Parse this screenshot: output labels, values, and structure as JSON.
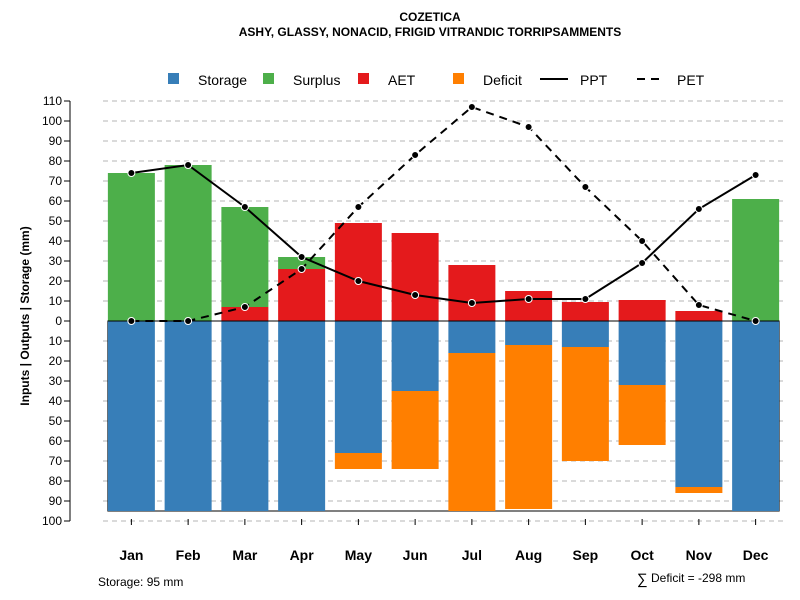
{
  "chart_data": {
    "type": "bar",
    "title": "COZETICA",
    "subtitle": "ASHY, GLASSY, NONACID, FRIGID VITRANDIC TORRIPSAMMENTS",
    "ylabel": "Inputs | Outputs | Storage    (mm)",
    "ylim": [
      -100,
      110
    ],
    "yticks": [
      110,
      100,
      90,
      80,
      70,
      60,
      50,
      40,
      30,
      20,
      10,
      0,
      -10,
      -20,
      -30,
      -40,
      -50,
      -60,
      -70,
      -80,
      -90,
      -100
    ],
    "ytick_labels": [
      "110",
      "100",
      "90",
      "80",
      "70",
      "60",
      "50",
      "40",
      "30",
      "20",
      "10",
      "0",
      "10",
      "20",
      "30",
      "40",
      "50",
      "60",
      "70",
      "80",
      "90",
      "100"
    ],
    "grid": true,
    "legend_position": "top",
    "categories": [
      "Jan",
      "Feb",
      "Mar",
      "Apr",
      "May",
      "Jun",
      "Jul",
      "Aug",
      "Sep",
      "Oct",
      "Nov",
      "Dec"
    ],
    "series": [
      {
        "name": "Storage",
        "kind": "bar-below",
        "color": "#377EB8",
        "values": [
          95,
          95,
          95,
          95,
          66,
          35,
          16,
          12,
          13,
          32,
          83,
          95
        ]
      },
      {
        "name": "Surplus",
        "kind": "bar-above",
        "color": "#4DAF4A",
        "values": [
          74,
          78,
          50,
          6,
          0,
          0,
          0,
          0,
          0,
          0,
          0,
          61
        ]
      },
      {
        "name": "AET",
        "kind": "bar-above",
        "color": "#E41A1C",
        "values": [
          0,
          0,
          7,
          26,
          49,
          44,
          28,
          15,
          9.5,
          10.5,
          5,
          0
        ]
      },
      {
        "name": "Deficit",
        "kind": "bar-below-stacked",
        "color": "#FF7F00",
        "values": [
          0,
          0,
          0,
          0,
          8,
          39,
          79,
          82,
          57,
          30,
          3,
          0
        ]
      },
      {
        "name": "PPT",
        "kind": "line",
        "style": "solid",
        "color": "#000000",
        "values": [
          74,
          78,
          57,
          32,
          20,
          13,
          9,
          11,
          11,
          29,
          56,
          73
        ]
      },
      {
        "name": "PET",
        "kind": "line",
        "style": "dashed",
        "color": "#000000",
        "values": [
          0,
          0,
          7,
          26,
          57,
          83,
          107,
          97,
          67,
          40,
          8,
          0
        ]
      }
    ],
    "storage_note": "Storage: 95 mm",
    "deficit_note": "Deficit = -298 mm",
    "deficit_symbol": "∑"
  }
}
